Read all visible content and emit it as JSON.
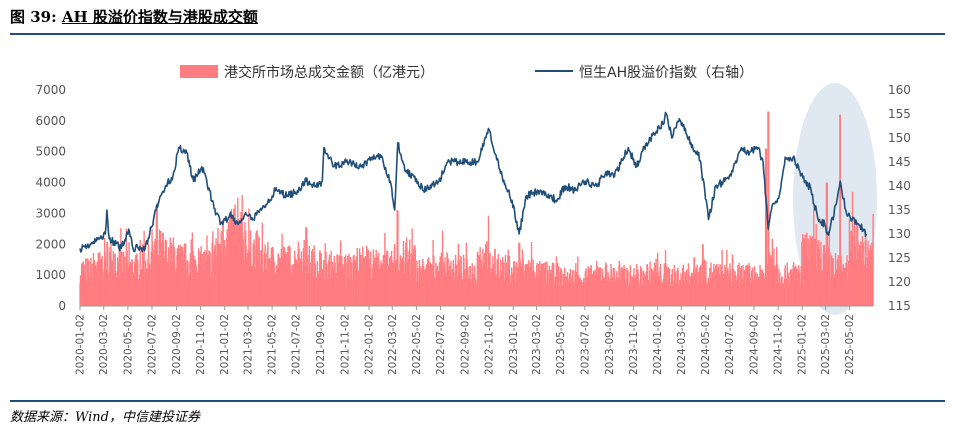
{
  "figure": {
    "number": "图 39:",
    "title": "AH 股溢价指数与港股成交额",
    "source": "数据来源：Wind，中信建投证券"
  },
  "chart_data": {
    "type": "bar+line",
    "title": "",
    "legend_placement": "top",
    "grid": false,
    "series": [
      {
        "name": "港交所市场总成交金额（亿港元）",
        "type": "bar",
        "axis": "left",
        "color": "#ff7c80",
        "monthly_avg": [
          1200,
          1350,
          1650,
          1400,
          1300,
          1500,
          1900,
          1700,
          1550,
          1500,
          1450,
          1950,
          2350,
          2300,
          1850,
          1550,
          1500,
          1500,
          1650,
          1500,
          1350,
          1300,
          1300,
          1500,
          1400,
          1350,
          1600,
          1550,
          1200,
          1250,
          1350,
          1250,
          1150,
          1650,
          1400,
          1250,
          1200,
          1250,
          1100,
          1050,
          950,
          950,
          1000,
          1100,
          1050,
          1000,
          950,
          1100,
          1050,
          1000,
          1050,
          1200,
          1100,
          1050,
          1050,
          1050,
          1000,
          1500,
          1050,
          1100,
          1800,
          1650,
          1350,
          1250,
          2150,
          1900,
          2200,
          2400,
          2300,
          1900
        ],
        "spikes": [
          {
            "date": "2020-12-28",
            "value": 2800
          },
          {
            "date": "2021-01-25",
            "value": 3150
          },
          {
            "date": "2021-02-08",
            "value": 2700
          },
          {
            "date": "2021-07-27",
            "value": 2550
          },
          {
            "date": "2022-03-15",
            "value": 3100
          },
          {
            "date": "2022-10-25",
            "value": 2000
          },
          {
            "date": "2023-01-17",
            "value": 2050
          },
          {
            "date": "2024-04-26",
            "value": 2000
          },
          {
            "date": "2024-10-08",
            "value": 6300
          },
          {
            "date": "2024-10-02",
            "value": 5100
          },
          {
            "date": "2025-03-05",
            "value": 4000
          },
          {
            "date": "2025-04-07",
            "value": 6200
          }
        ]
      },
      {
        "name": "恒生AH股溢价指数（右轴）",
        "type": "line",
        "axis": "right",
        "color": "#1f4e79",
        "points": [
          [
            "2020-01-02",
            127
          ],
          [
            "2020-02-03",
            128
          ],
          [
            "2020-02-20",
            129
          ],
          [
            "2020-03-06",
            130
          ],
          [
            "2020-03-10",
            135
          ],
          [
            "2020-03-16",
            129
          ],
          [
            "2020-04-15",
            127
          ],
          [
            "2020-05-04",
            131
          ],
          [
            "2020-05-15",
            127
          ],
          [
            "2020-05-29",
            127
          ],
          [
            "2020-06-15",
            127
          ],
          [
            "2020-07-06",
            133
          ],
          [
            "2020-07-20",
            137
          ],
          [
            "2020-08-05",
            140
          ],
          [
            "2020-08-24",
            142
          ],
          [
            "2020-09-08",
            148
          ],
          [
            "2020-09-28",
            147
          ],
          [
            "2020-10-15",
            141
          ],
          [
            "2020-11-05",
            144
          ],
          [
            "2020-11-25",
            139
          ],
          [
            "2020-12-10",
            134
          ],
          [
            "2020-12-28",
            132
          ],
          [
            "2021-01-15",
            134
          ],
          [
            "2021-02-05",
            132
          ],
          [
            "2021-02-26",
            134
          ],
          [
            "2021-03-10",
            133
          ],
          [
            "2021-04-05",
            135
          ],
          [
            "2021-05-10",
            139
          ],
          [
            "2021-06-10",
            138
          ],
          [
            "2021-07-05",
            139
          ],
          [
            "2021-07-27",
            141
          ],
          [
            "2021-08-20",
            140
          ],
          [
            "2021-09-06",
            141
          ],
          [
            "2021-09-10",
            148
          ],
          [
            "2021-10-05",
            144
          ],
          [
            "2021-11-05",
            145
          ],
          [
            "2021-12-15",
            144
          ],
          [
            "2022-01-10",
            146
          ],
          [
            "2022-02-01",
            146
          ],
          [
            "2022-02-25",
            141
          ],
          [
            "2022-03-08",
            135
          ],
          [
            "2022-03-16",
            149
          ],
          [
            "2022-04-05",
            143
          ],
          [
            "2022-04-28",
            142
          ],
          [
            "2022-05-20",
            139
          ],
          [
            "2022-06-28",
            141
          ],
          [
            "2022-07-20",
            145
          ],
          [
            "2022-08-15",
            145
          ],
          [
            "2022-09-15",
            145
          ],
          [
            "2022-10-05",
            145
          ],
          [
            "2022-10-31",
            152
          ],
          [
            "2022-11-15",
            147
          ],
          [
            "2022-12-05",
            142
          ],
          [
            "2022-12-30",
            137
          ],
          [
            "2023-01-17",
            130
          ],
          [
            "2023-02-05",
            138
          ],
          [
            "2023-03-06",
            139
          ],
          [
            "2023-04-05",
            138
          ],
          [
            "2023-04-20",
            137
          ],
          [
            "2023-05-15",
            140
          ],
          [
            "2023-06-05",
            139
          ],
          [
            "2023-07-03",
            141
          ],
          [
            "2023-08-01",
            140
          ],
          [
            "2023-08-25",
            143
          ],
          [
            "2023-09-15",
            142
          ],
          [
            "2023-10-20",
            148
          ],
          [
            "2023-11-10",
            144
          ],
          [
            "2023-12-05",
            149
          ],
          [
            "2023-12-28",
            151
          ],
          [
            "2024-01-15",
            153
          ],
          [
            "2024-01-24",
            155
          ],
          [
            "2024-02-07",
            150
          ],
          [
            "2024-02-26",
            154
          ],
          [
            "2024-03-12",
            152
          ],
          [
            "2024-03-28",
            148
          ],
          [
            "2024-04-15",
            147
          ],
          [
            "2024-05-06",
            136
          ],
          [
            "2024-05-10",
            133
          ],
          [
            "2024-05-28",
            140
          ],
          [
            "2024-06-20",
            141
          ],
          [
            "2024-07-10",
            143
          ],
          [
            "2024-08-01",
            148
          ],
          [
            "2024-08-22",
            147
          ],
          [
            "2024-09-12",
            148
          ],
          [
            "2024-09-25",
            145
          ],
          [
            "2024-10-08",
            131
          ],
          [
            "2024-10-18",
            136
          ],
          [
            "2024-11-05",
            138
          ],
          [
            "2024-11-20",
            146
          ],
          [
            "2024-12-10",
            146
          ],
          [
            "2024-12-27",
            143
          ],
          [
            "2025-01-13",
            140
          ],
          [
            "2025-01-22",
            140
          ],
          [
            "2025-02-11",
            133
          ],
          [
            "2025-02-28",
            132
          ],
          [
            "2025-03-06",
            130
          ],
          [
            "2025-03-13",
            131
          ],
          [
            "2025-03-31",
            137
          ],
          [
            "2025-04-08",
            141
          ],
          [
            "2025-04-22",
            135
          ],
          [
            "2025-05-08",
            133
          ],
          [
            "2025-05-20",
            132
          ],
          [
            "2025-06-05",
            131
          ],
          [
            "2025-06-13",
            130
          ]
        ]
      }
    ],
    "left_axis": {
      "min": 0,
      "max": 7000,
      "ticks": [
        "0",
        "1000",
        "2000",
        "3000",
        "4000",
        "5000",
        "6000",
        "7000"
      ]
    },
    "right_axis": {
      "min": 115,
      "max": 160,
      "ticks": [
        "115",
        "120",
        "125",
        "130",
        "135",
        "140",
        "145",
        "150",
        "155",
        "160"
      ]
    },
    "x_axis": {
      "start": "2020-01-02",
      "end": "2025-06-30",
      "ticks": [
        "2020-01-02",
        "2020-03-02",
        "2020-05-02",
        "2020-07-02",
        "2020-09-02",
        "2020-11-02",
        "2021-01-02",
        "2021-03-02",
        "2021-05-02",
        "2021-07-02",
        "2021-09-02",
        "2021-11-02",
        "2022-01-02",
        "2022-03-02",
        "2022-05-02",
        "2022-07-02",
        "2022-09-02",
        "2022-11-02",
        "2023-01-02",
        "2023-03-02",
        "2023-05-02",
        "2023-07-02",
        "2023-09-02",
        "2023-11-02",
        "2024-01-02",
        "2024-03-02",
        "2024-05-02",
        "2024-07-02",
        "2024-09-02",
        "2024-11-02",
        "2025-01-02",
        "2025-03-02",
        "2025-05-02"
      ]
    },
    "highlight": {
      "shape": "ellipse",
      "from": "2024-12-20",
      "to": "2025-06-30",
      "color": "#d6e0ec"
    }
  }
}
